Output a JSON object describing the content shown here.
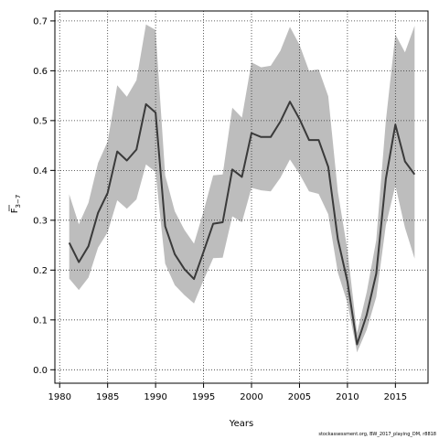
{
  "chart_data": {
    "type": "line",
    "xlabel": "Years",
    "ylabel_main": "F",
    "ylabel_sub": "3−7",
    "xlim": [
      1979.5,
      2018.4
    ],
    "ylim": [
      -0.027,
      0.72
    ],
    "x_ticks": [
      1980,
      1985,
      1990,
      1995,
      2000,
      2005,
      2010,
      2015
    ],
    "y_ticks": [
      0.0,
      0.1,
      0.2,
      0.3,
      0.4,
      0.5,
      0.6,
      0.7
    ],
    "y_tick_labels": [
      "0.0",
      "0.1",
      "0.2",
      "0.3",
      "0.4",
      "0.5",
      "0.6",
      "0.7"
    ],
    "grid": true,
    "colors": {
      "line": "#3a3a3a",
      "band": "#bdbdbd",
      "grid": "#333333"
    },
    "series": [
      {
        "x": [
          1981,
          1982,
          1983,
          1984,
          1985,
          1986,
          1987,
          1988,
          1989,
          1990,
          1991,
          1992,
          1993,
          1994,
          1995,
          1996,
          1997,
          1998,
          1999,
          2000,
          2001,
          2002,
          2003,
          2004,
          2005,
          2006,
          2007,
          2008,
          2009,
          2010,
          2011,
          2012,
          2013,
          2014,
          2015,
          2016,
          2017
        ],
        "y": [
          0.255,
          0.216,
          0.248,
          0.315,
          0.355,
          0.438,
          0.42,
          0.442,
          0.533,
          0.516,
          0.288,
          0.232,
          0.202,
          0.182,
          0.237,
          0.293,
          0.296,
          0.402,
          0.387,
          0.475,
          0.467,
          0.467,
          0.498,
          0.538,
          0.503,
          0.461,
          0.461,
          0.407,
          0.262,
          0.177,
          0.051,
          0.11,
          0.193,
          0.383,
          0.492,
          0.418,
          0.392
        ],
        "lower": [
          0.183,
          0.16,
          0.185,
          0.245,
          0.276,
          0.34,
          0.323,
          0.342,
          0.412,
          0.397,
          0.213,
          0.17,
          0.15,
          0.133,
          0.18,
          0.224,
          0.225,
          0.308,
          0.296,
          0.365,
          0.36,
          0.358,
          0.385,
          0.422,
          0.393,
          0.358,
          0.353,
          0.312,
          0.195,
          0.134,
          0.035,
          0.08,
          0.146,
          0.29,
          0.37,
          0.285,
          0.223
        ],
        "upper": [
          0.352,
          0.292,
          0.335,
          0.415,
          0.458,
          0.571,
          0.548,
          0.581,
          0.693,
          0.682,
          0.39,
          0.318,
          0.281,
          0.253,
          0.318,
          0.39,
          0.392,
          0.526,
          0.506,
          0.617,
          0.607,
          0.61,
          0.64,
          0.688,
          0.652,
          0.6,
          0.603,
          0.549,
          0.357,
          0.24,
          0.074,
          0.155,
          0.26,
          0.5,
          0.673,
          0.637,
          0.69
        ]
      }
    ]
  },
  "footer": "stockassessment.org, BW_2017_playing_DM, r8818"
}
